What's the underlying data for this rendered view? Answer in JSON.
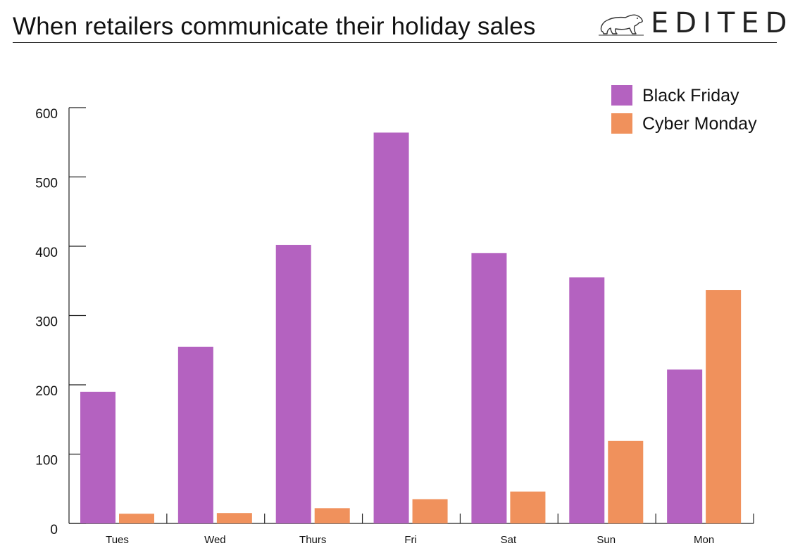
{
  "header": {
    "title": "When retailers communicate their holiday sales",
    "brand": "EDITED",
    "brand_icon": "polar-bear-icon"
  },
  "chart_data": {
    "type": "bar",
    "title": "When retailers communicate their holiday sales",
    "categories": [
      "Tues",
      "Wed",
      "Thurs",
      "Fri",
      "Sat",
      "Sun",
      "Mon"
    ],
    "series": [
      {
        "name": "Black Friday",
        "color": "#b462c0",
        "values": [
          190,
          255,
          402,
          564,
          390,
          355,
          222
        ]
      },
      {
        "name": "Cyber Monday",
        "color": "#f0915c",
        "values": [
          14,
          15,
          22,
          35,
          46,
          119,
          337
        ]
      }
    ],
    "y_ticks": [
      "0",
      "100",
      "200",
      "300",
      "400",
      "500",
      "600"
    ],
    "ylim": [
      0,
      600
    ],
    "xlabel": "",
    "ylabel": "",
    "grid": false,
    "legend_position": "top-right"
  }
}
